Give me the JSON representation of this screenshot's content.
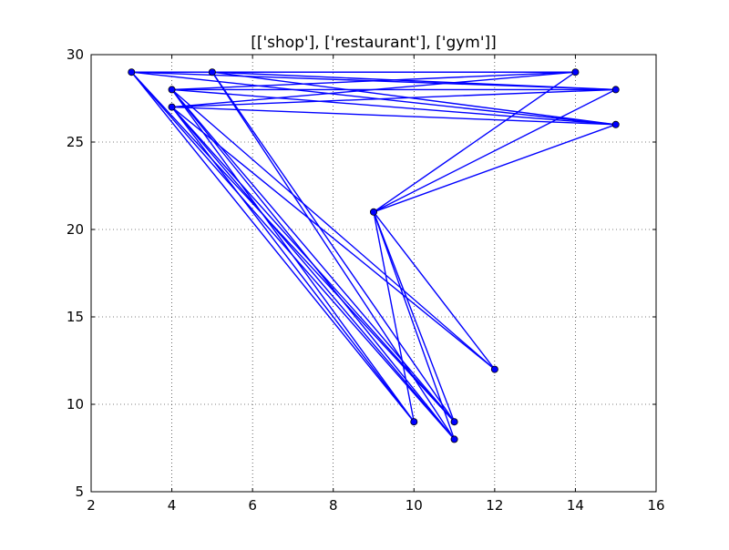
{
  "chart_data": {
    "type": "line",
    "title": "[['shop'], ['restaurant'], ['gym']]",
    "xlabel": "",
    "ylabel": "",
    "xlim": [
      2,
      16
    ],
    "ylim": [
      5,
      30
    ],
    "xticks": [
      2,
      4,
      6,
      8,
      10,
      12,
      14,
      16
    ],
    "yticks": [
      5,
      10,
      15,
      20,
      25,
      30
    ],
    "xtick_labels": [
      "2",
      "4",
      "6",
      "8",
      "10",
      "12",
      "14",
      "16"
    ],
    "ytick_labels": [
      "5",
      "10",
      "15",
      "20",
      "25",
      "30"
    ],
    "grid": true,
    "legend": false,
    "marker": "circle",
    "line_color": "#0000ff",
    "points": [
      {
        "x": 3,
        "y": 29
      },
      {
        "x": 5,
        "y": 29
      },
      {
        "x": 4,
        "y": 28
      },
      {
        "x": 4,
        "y": 27
      },
      {
        "x": 14,
        "y": 29
      },
      {
        "x": 15,
        "y": 28
      },
      {
        "x": 15,
        "y": 26
      },
      {
        "x": 9,
        "y": 21
      },
      {
        "x": 12,
        "y": 12
      },
      {
        "x": 10,
        "y": 9
      },
      {
        "x": 11,
        "y": 9
      },
      {
        "x": 11,
        "y": 8
      }
    ],
    "segments": [
      [
        [
          3,
          29
        ],
        [
          14,
          29
        ]
      ],
      [
        [
          3,
          29
        ],
        [
          15,
          28
        ]
      ],
      [
        [
          3,
          29
        ],
        [
          15,
          26
        ]
      ],
      [
        [
          3,
          29
        ],
        [
          10,
          9
        ]
      ],
      [
        [
          3,
          29
        ],
        [
          11,
          9
        ]
      ],
      [
        [
          3,
          29
        ],
        [
          11,
          8
        ]
      ],
      [
        [
          3,
          29
        ],
        [
          5,
          29
        ]
      ],
      [
        [
          5,
          29
        ],
        [
          14,
          29
        ]
      ],
      [
        [
          5,
          29
        ],
        [
          15,
          28
        ]
      ],
      [
        [
          5,
          29
        ],
        [
          15,
          26
        ]
      ],
      [
        [
          5,
          29
        ],
        [
          11,
          9
        ]
      ],
      [
        [
          5,
          29
        ],
        [
          11,
          8
        ]
      ],
      [
        [
          4,
          28
        ],
        [
          14,
          29
        ]
      ],
      [
        [
          4,
          28
        ],
        [
          15,
          28
        ]
      ],
      [
        [
          4,
          28
        ],
        [
          15,
          26
        ]
      ],
      [
        [
          4,
          28
        ],
        [
          12,
          12
        ]
      ],
      [
        [
          4,
          28
        ],
        [
          10,
          9
        ]
      ],
      [
        [
          4,
          28
        ],
        [
          11,
          9
        ]
      ],
      [
        [
          4,
          28
        ],
        [
          11,
          8
        ]
      ],
      [
        [
          4,
          27
        ],
        [
          14,
          29
        ]
      ],
      [
        [
          4,
          27
        ],
        [
          15,
          28
        ]
      ],
      [
        [
          4,
          27
        ],
        [
          15,
          26
        ]
      ],
      [
        [
          4,
          27
        ],
        [
          12,
          12
        ]
      ],
      [
        [
          4,
          27
        ],
        [
          10,
          9
        ]
      ],
      [
        [
          4,
          27
        ],
        [
          11,
          9
        ]
      ],
      [
        [
          4,
          27
        ],
        [
          11,
          8
        ]
      ],
      [
        [
          9,
          21
        ],
        [
          14,
          29
        ]
      ],
      [
        [
          9,
          21
        ],
        [
          15,
          28
        ]
      ],
      [
        [
          9,
          21
        ],
        [
          15,
          26
        ]
      ],
      [
        [
          9,
          21
        ],
        [
          12,
          12
        ]
      ],
      [
        [
          9,
          21
        ],
        [
          10,
          9
        ]
      ],
      [
        [
          9,
          21
        ],
        [
          11,
          9
        ]
      ],
      [
        [
          9,
          21
        ],
        [
          11,
          8
        ]
      ]
    ]
  }
}
